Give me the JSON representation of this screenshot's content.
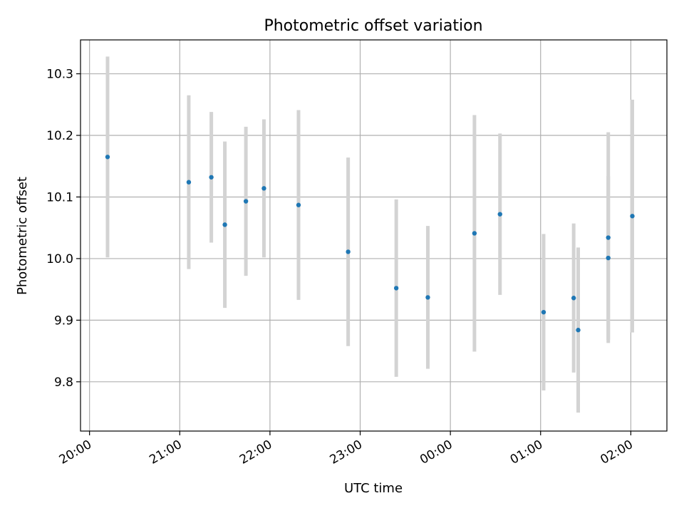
{
  "chart_data": {
    "type": "scatter",
    "title": "Photometric offset variation",
    "xlabel": "UTC time",
    "ylabel": "Photometric offset",
    "x_ticks": [
      "20:00",
      "21:00",
      "22:00",
      "23:00",
      "00:00",
      "01:00",
      "02:00"
    ],
    "y_ticks": [
      "9.8",
      "9.9",
      "10.0",
      "10.1",
      "10.2",
      "10.3"
    ],
    "xlim": [
      "19:54",
      "02:24"
    ],
    "ylim": [
      9.72,
      10.355
    ],
    "grid": true,
    "errorbar_color": "#d3d3d3",
    "point_color": "#1f77b4",
    "points": [
      {
        "x": "20:12",
        "y": 10.165,
        "err": 0.163
      },
      {
        "x": "21:06",
        "y": 10.124,
        "err": 0.141
      },
      {
        "x": "21:21",
        "y": 10.132,
        "err": 0.106
      },
      {
        "x": "21:30",
        "y": 10.055,
        "err": 0.135
      },
      {
        "x": "21:44",
        "y": 10.093,
        "err": 0.121
      },
      {
        "x": "21:56",
        "y": 10.114,
        "err": 0.112
      },
      {
        "x": "22:19",
        "y": 10.087,
        "err": 0.154
      },
      {
        "x": "22:52",
        "y": 10.011,
        "err": 0.153
      },
      {
        "x": "23:24",
        "y": 9.952,
        "err": 0.144
      },
      {
        "x": "23:45",
        "y": 9.937,
        "err": 0.116
      },
      {
        "x": "00:16",
        "y": 10.041,
        "err": 0.192
      },
      {
        "x": "00:33",
        "y": 10.072,
        "err": 0.131
      },
      {
        "x": "01:02",
        "y": 9.913,
        "err": 0.127
      },
      {
        "x": "01:22",
        "y": 9.936,
        "err": 0.121
      },
      {
        "x": "01:25",
        "y": 9.884,
        "err": 0.134
      },
      {
        "x": "01:45",
        "y": 10.034,
        "err": 0.171
      },
      {
        "x": "01:45",
        "y": 10.001,
        "err": 0.133
      },
      {
        "x": "02:01",
        "y": 10.069,
        "err": 0.189
      }
    ]
  }
}
